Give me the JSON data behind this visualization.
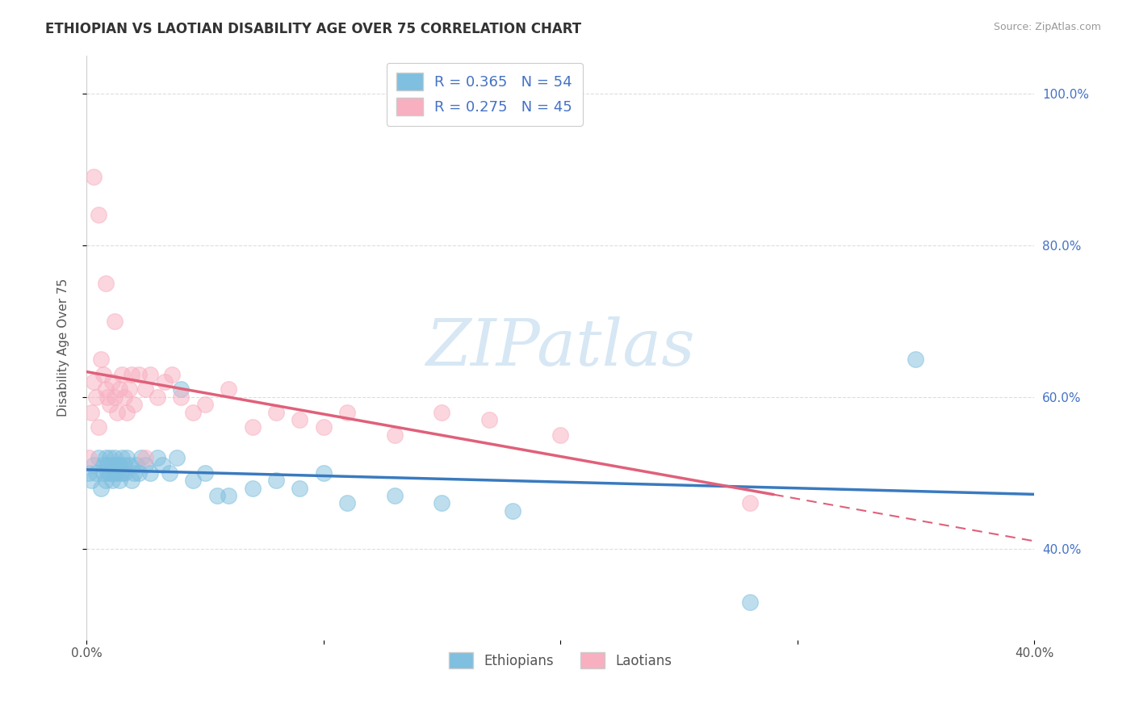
{
  "title": "ETHIOPIAN VS LAOTIAN DISABILITY AGE OVER 75 CORRELATION CHART",
  "source": "Source: ZipAtlas.com",
  "ylabel": "Disability Age Over 75",
  "xlim": [
    0.0,
    0.4
  ],
  "ylim": [
    0.28,
    1.05
  ],
  "x_ticks": [
    0.0,
    0.1,
    0.2,
    0.3,
    0.4
  ],
  "x_tick_labels": [
    "0.0%",
    "",
    "",
    "",
    "40.0%"
  ],
  "y_ticks": [
    0.4,
    0.6,
    0.8,
    1.0
  ],
  "y_tick_labels_right": [
    "40.0%",
    "60.0%",
    "80.0%",
    "100.0%"
  ],
  "ethiopian_R": 0.365,
  "ethiopian_N": 54,
  "laotian_R": 0.275,
  "laotian_N": 45,
  "blue_color": "#7fbfdf",
  "pink_color": "#f8afc0",
  "blue_line_color": "#3a7abf",
  "pink_line_color": "#e0607a",
  "watermark": "ZIPatlas",
  "ethiopian_x": [
    0.001,
    0.002,
    0.003,
    0.004,
    0.005,
    0.006,
    0.007,
    0.007,
    0.008,
    0.008,
    0.009,
    0.009,
    0.01,
    0.01,
    0.011,
    0.011,
    0.012,
    0.012,
    0.013,
    0.013,
    0.014,
    0.014,
    0.015,
    0.015,
    0.016,
    0.016,
    0.017,
    0.018,
    0.019,
    0.02,
    0.021,
    0.022,
    0.023,
    0.025,
    0.027,
    0.03,
    0.032,
    0.035,
    0.038,
    0.04,
    0.045,
    0.05,
    0.055,
    0.06,
    0.07,
    0.08,
    0.09,
    0.1,
    0.11,
    0.13,
    0.15,
    0.18,
    0.35,
    0.28
  ],
  "ethiopian_y": [
    0.5,
    0.49,
    0.51,
    0.5,
    0.52,
    0.48,
    0.51,
    0.5,
    0.49,
    0.52,
    0.5,
    0.51,
    0.52,
    0.5,
    0.49,
    0.51,
    0.5,
    0.52,
    0.51,
    0.5,
    0.49,
    0.51,
    0.5,
    0.52,
    0.51,
    0.5,
    0.52,
    0.51,
    0.49,
    0.5,
    0.51,
    0.5,
    0.52,
    0.51,
    0.5,
    0.52,
    0.51,
    0.5,
    0.52,
    0.61,
    0.49,
    0.5,
    0.47,
    0.47,
    0.48,
    0.49,
    0.48,
    0.5,
    0.46,
    0.47,
    0.46,
    0.45,
    0.65,
    0.33
  ],
  "laotian_x": [
    0.001,
    0.002,
    0.003,
    0.004,
    0.005,
    0.006,
    0.007,
    0.008,
    0.009,
    0.01,
    0.011,
    0.012,
    0.013,
    0.014,
    0.015,
    0.016,
    0.017,
    0.018,
    0.019,
    0.02,
    0.022,
    0.025,
    0.027,
    0.03,
    0.033,
    0.036,
    0.04,
    0.045,
    0.05,
    0.06,
    0.07,
    0.08,
    0.09,
    0.1,
    0.11,
    0.13,
    0.15,
    0.17,
    0.2,
    0.28,
    0.003,
    0.005,
    0.008,
    0.012,
    0.025
  ],
  "laotian_y": [
    0.52,
    0.58,
    0.62,
    0.6,
    0.56,
    0.65,
    0.63,
    0.61,
    0.6,
    0.59,
    0.62,
    0.6,
    0.58,
    0.61,
    0.63,
    0.6,
    0.58,
    0.61,
    0.63,
    0.59,
    0.63,
    0.61,
    0.63,
    0.6,
    0.62,
    0.63,
    0.6,
    0.58,
    0.59,
    0.61,
    0.56,
    0.58,
    0.57,
    0.56,
    0.58,
    0.55,
    0.58,
    0.57,
    0.55,
    0.46,
    0.89,
    0.84,
    0.75,
    0.7,
    0.52
  ],
  "background_color": "#ffffff",
  "grid_color": "#dddddd"
}
